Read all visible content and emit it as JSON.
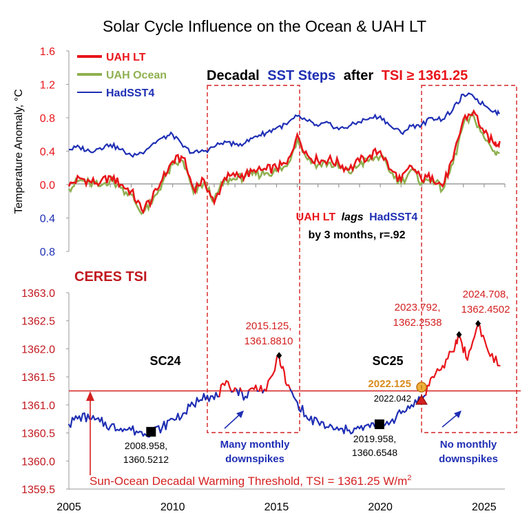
{
  "title": "Solar Cycle Influence on the Ocean & UAH LT",
  "legend": [
    {
      "label": "UAH LT",
      "color": "#e8141a"
    },
    {
      "label": "UAH Ocean",
      "color": "#8fb050"
    },
    {
      "label": "HadSST4",
      "color": "#1f2fb4"
    }
  ],
  "headline": {
    "part1": "Decadal",
    "part2": "SST Steps",
    "part3": "after",
    "part4": "TSI ≥ 1361.25"
  },
  "lag_note": {
    "line1_a": "UAH LT",
    "line1_b": "lags",
    "line1_c": "HadSST4",
    "line2": "by 3 months, r=.92"
  },
  "ceres_label": "CERES TSI",
  "cycle_labels": {
    "sc24": "SC24",
    "sc25": "SC25"
  },
  "annotations": {
    "min24": {
      "line1": "2008.958,",
      "line2": "1360.5212"
    },
    "peak24": {
      "line1": "2015.125,",
      "line2": "1361.8810"
    },
    "min25": {
      "line1": "2019.958,",
      "line2": "1360.6548"
    },
    "peak25a": {
      "line1": "2023.792,",
      "line2": "1362.2538"
    },
    "peak25b": {
      "line1": "2024.708,",
      "line2": "1362.4502"
    },
    "cross_orange": "2022.125",
    "cross_red": "2022.042",
    "many_down": {
      "line1": "Many monthly",
      "line2": "downspikes"
    },
    "no_down": {
      "line1": "No monthly",
      "line2": "downspikes"
    },
    "threshold": "Sun-Ocean Decadal Warming Threshold, TSI = 1361.25 W/m",
    "threshold_sup": "2"
  },
  "colors": {
    "red": "#e8141a",
    "blue": "#1f2fb4",
    "green": "#8fb050",
    "darkred": "#c0181e",
    "black": "#000000",
    "orange": "#d98a1c"
  },
  "chart_data": [
    {
      "type": "line",
      "title": "Solar Cycle Influence on the Ocean & UAH LT",
      "ylabel": "Temperature Anomaly, °C",
      "ylim": [
        -0.8,
        1.6
      ],
      "yticks": [
        {
          "label": "1.6",
          "color": "#e8141a"
        },
        {
          "label": "1.2",
          "color": "#e8141a"
        },
        {
          "label": "0.8",
          "color": "#e8141a"
        },
        {
          "label": "0.4",
          "color": "#e8141a"
        },
        {
          "label": "0.0",
          "color": "#e8141a"
        },
        {
          "label": "0.4",
          "color": "#1f2fb4"
        },
        {
          "label": "0.8",
          "color": "#1f2fb4"
        }
      ],
      "x": [
        2005.0,
        2005.5,
        2006.0,
        2006.5,
        2007.0,
        2007.5,
        2008.0,
        2008.5,
        2009.0,
        2009.5,
        2010.0,
        2010.5,
        2011.0,
        2011.5,
        2012.0,
        2012.5,
        2013.0,
        2013.5,
        2014.0,
        2014.5,
        2015.0,
        2015.5,
        2016.0,
        2016.5,
        2017.0,
        2017.5,
        2018.0,
        2018.5,
        2019.0,
        2019.5,
        2020.0,
        2020.5,
        2021.0,
        2021.5,
        2022.0,
        2022.5,
        2023.0,
        2023.5,
        2024.0,
        2024.5,
        2025.0,
        2025.5,
        2025.75
      ],
      "series": [
        {
          "name": "UAH LT",
          "values": [
            -0.02,
            0.08,
            0.04,
            0.02,
            0.1,
            0.0,
            -0.08,
            -0.3,
            -0.18,
            0.06,
            0.28,
            0.32,
            -0.05,
            0.06,
            -0.22,
            0.08,
            0.1,
            0.12,
            0.15,
            0.18,
            0.2,
            0.25,
            0.6,
            0.35,
            0.28,
            0.3,
            0.25,
            0.18,
            0.28,
            0.35,
            0.4,
            0.18,
            0.05,
            0.22,
            0.05,
            0.1,
            -0.02,
            0.3,
            0.78,
            0.88,
            0.62,
            0.48,
            0.52
          ]
        },
        {
          "name": "UAH Ocean",
          "values": [
            -0.05,
            0.05,
            0.02,
            -0.02,
            0.06,
            -0.04,
            -0.12,
            -0.35,
            -0.22,
            0.02,
            0.24,
            0.28,
            -0.1,
            0.02,
            -0.18,
            0.05,
            0.06,
            0.1,
            0.12,
            0.14,
            0.16,
            0.22,
            0.55,
            0.3,
            0.24,
            0.26,
            0.2,
            0.14,
            0.24,
            0.3,
            0.34,
            0.14,
            0.02,
            0.18,
            0.02,
            0.06,
            -0.06,
            0.25,
            0.72,
            0.82,
            0.56,
            0.4,
            0.38
          ]
        },
        {
          "name": "HadSST4",
          "values": [
            0.42,
            0.45,
            0.4,
            0.44,
            0.48,
            0.42,
            0.35,
            0.38,
            0.48,
            0.56,
            0.6,
            0.45,
            0.38,
            0.4,
            0.45,
            0.52,
            0.48,
            0.5,
            0.58,
            0.62,
            0.68,
            0.72,
            0.82,
            0.76,
            0.7,
            0.74,
            0.66,
            0.7,
            0.75,
            0.8,
            0.82,
            0.7,
            0.62,
            0.7,
            0.72,
            0.8,
            0.78,
            0.9,
            1.08,
            1.05,
            0.95,
            0.88,
            0.85
          ]
        }
      ]
    },
    {
      "type": "line",
      "title": "CERES TSI",
      "ylabel": "",
      "ylim": [
        1359.5,
        1363.0
      ],
      "yticks": [
        "1363.0",
        "1362.5",
        "1362.0",
        "1361.5",
        "1361.0",
        "1360.5",
        "1360.0",
        "1359.5"
      ],
      "xticks": [
        "2005",
        "2010",
        "2015",
        "2020",
        "2025"
      ],
      "xlim": [
        2005,
        2026
      ],
      "threshold": 1361.25,
      "x": [
        2005.0,
        2005.5,
        2006.0,
        2006.5,
        2007.0,
        2007.5,
        2008.0,
        2008.5,
        2008.958,
        2009.5,
        2010.0,
        2010.5,
        2011.0,
        2011.5,
        2012.0,
        2012.5,
        2013.0,
        2013.5,
        2014.0,
        2014.5,
        2015.125,
        2015.5,
        2016.0,
        2016.5,
        2017.0,
        2017.5,
        2018.0,
        2018.5,
        2019.0,
        2019.5,
        2019.958,
        2020.5,
        2021.0,
        2021.5,
        2022.042,
        2022.5,
        2023.0,
        2023.5,
        2023.792,
        2024.2,
        2024.708,
        2025.2,
        2025.75
      ],
      "series": [
        {
          "name": "CERES TSI",
          "values": [
            1360.65,
            1360.8,
            1360.75,
            1360.7,
            1360.62,
            1360.58,
            1360.55,
            1360.52,
            1360.52,
            1360.6,
            1360.75,
            1360.85,
            1361.0,
            1361.2,
            1361.1,
            1361.35,
            1361.3,
            1361.15,
            1361.35,
            1361.25,
            1361.88,
            1361.35,
            1361.05,
            1360.75,
            1360.7,
            1360.6,
            1360.55,
            1360.55,
            1360.58,
            1360.6,
            1360.65,
            1360.7,
            1360.85,
            1361.0,
            1361.12,
            1361.5,
            1361.7,
            1361.95,
            1362.25,
            1361.8,
            1362.45,
            1361.95,
            1361.7
          ]
        }
      ]
    }
  ]
}
